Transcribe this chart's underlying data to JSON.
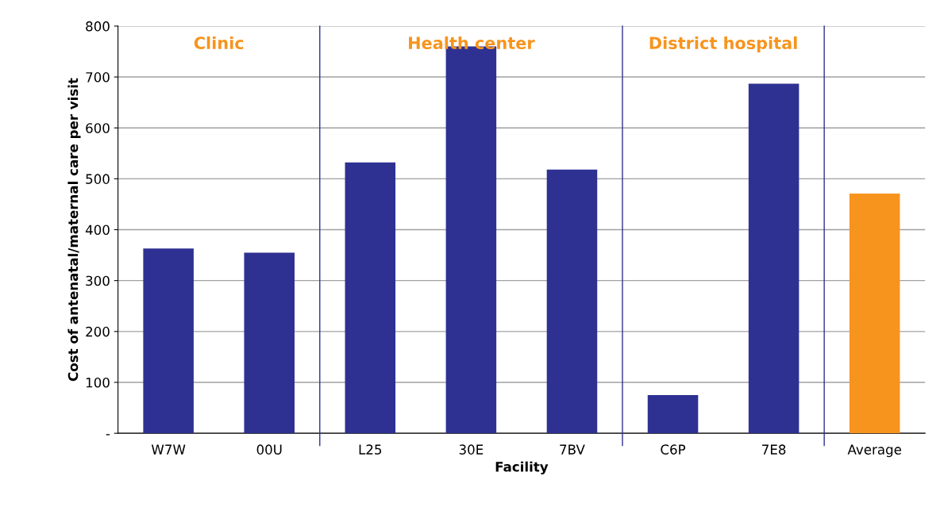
{
  "chart_data": {
    "type": "bar",
    "xlabel": "Facility",
    "ylabel": "Cost of antenatal/maternal care per visit",
    "categories": [
      "W7W",
      "00U",
      "L25",
      "30E",
      "7BV",
      "C6P",
      "7E8",
      "Average"
    ],
    "values": [
      363,
      355,
      532,
      760,
      518,
      75,
      687,
      471
    ],
    "colors": [
      "#2e3192",
      "#2e3192",
      "#2e3192",
      "#2e3192",
      "#2e3192",
      "#2e3192",
      "#2e3192",
      "#f7941d"
    ],
    "ylim": [
      0,
      800
    ],
    "yticks": [
      {
        "value": 0,
        "label": "-"
      },
      100,
      200,
      300,
      400,
      500,
      600,
      700,
      800
    ],
    "grid": "y",
    "legend": false,
    "annotations": [
      "Clinic",
      "Health center",
      "District hospital"
    ]
  }
}
